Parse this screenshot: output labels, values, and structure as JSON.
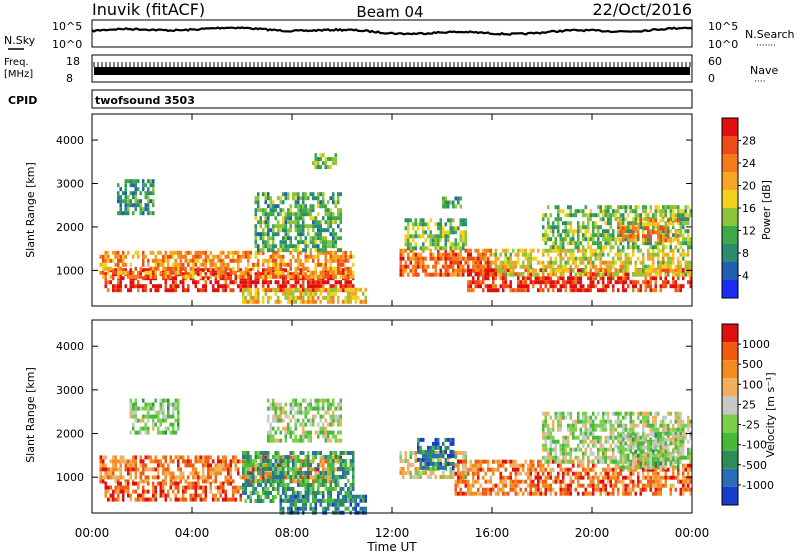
{
  "header": {
    "station": "Inuvik (fitACF)",
    "beam": "Beam 04",
    "date": "22/Oct/2016"
  },
  "nsky": {
    "left_label": "N.Sky",
    "ticks": [
      "10^5",
      "10^0"
    ],
    "right_label": "N.Search",
    "right_ticks": [
      "10^5",
      "10^0"
    ]
  },
  "freq": {
    "left_label_1": "Freq.",
    "left_label_2": "[MHz]",
    "ticks": [
      "18",
      "8"
    ],
    "right_label": "Nave",
    "right_ticks": [
      "60",
      "0"
    ]
  },
  "cpid": {
    "label": "CPID",
    "value": "twofsound 3503"
  },
  "x_axis": {
    "ticks": [
      "00:00",
      "04:00",
      "08:00",
      "12:00",
      "16:00",
      "20:00",
      "00:00"
    ],
    "label": "Time UT"
  },
  "chart_data": [
    {
      "type": "heatmap",
      "panel": "power",
      "ylabel": "Slant Range [km]",
      "y_ticks": [
        "1000",
        "2000",
        "3000",
        "4000"
      ],
      "ylim": [
        180,
        4600
      ],
      "xlim_hours": [
        0,
        24
      ],
      "colorbar": {
        "label": "Power [dB]",
        "ticks": [
          "4",
          "8",
          "12",
          "16",
          "20",
          "24",
          "28"
        ],
        "colors": [
          "#1a2cf0",
          "#1f5faf",
          "#2a8c6c",
          "#3fa84a",
          "#8cc43a",
          "#f0d21e",
          "#f5a623",
          "#f57c1a",
          "#f04a18",
          "#e01010"
        ]
      },
      "regions": [
        {
          "t0": 0.5,
          "t1": 10.5,
          "r0": 500,
          "r1": 1050,
          "level": 0.95
        },
        {
          "t0": 0.3,
          "t1": 10.5,
          "r0": 850,
          "r1": 1450,
          "level": 0.7
        },
        {
          "t0": 6.0,
          "t1": 11.0,
          "r0": 300,
          "r1": 600,
          "level": 0.6
        },
        {
          "t0": 1.0,
          "t1": 2.5,
          "r0": 2300,
          "r1": 3100,
          "level": 0.3
        },
        {
          "t0": 6.5,
          "t1": 10.0,
          "r0": 1500,
          "r1": 2800,
          "level": 0.35
        },
        {
          "t0": 8.8,
          "t1": 9.8,
          "r0": 3400,
          "r1": 3700,
          "level": 0.4
        },
        {
          "t0": 12.3,
          "t1": 16.2,
          "r0": 900,
          "r1": 1500,
          "level": 0.8
        },
        {
          "t0": 12.5,
          "t1": 15.0,
          "r0": 1500,
          "r1": 2200,
          "level": 0.4
        },
        {
          "t0": 14.0,
          "t1": 14.8,
          "r0": 2500,
          "r1": 2700,
          "level": 0.3
        },
        {
          "t0": 15.0,
          "t1": 24.0,
          "r0": 550,
          "r1": 1050,
          "level": 0.9
        },
        {
          "t0": 16.0,
          "t1": 24.0,
          "r0": 900,
          "r1": 1500,
          "level": 0.55
        },
        {
          "t0": 18.0,
          "t1": 24.0,
          "r0": 1500,
          "r1": 2500,
          "level": 0.4
        },
        {
          "t0": 21.0,
          "t1": 23.5,
          "r0": 1700,
          "r1": 2200,
          "level": 0.7
        }
      ]
    },
    {
      "type": "heatmap",
      "panel": "velocity",
      "ylabel": "Slant Range [km]",
      "y_ticks": [
        "1000",
        "2000",
        "3000",
        "4000"
      ],
      "ylim": [
        180,
        4600
      ],
      "xlim_hours": [
        0,
        24
      ],
      "colorbar": {
        "label": "Velocity [m s⁻¹]",
        "ticks": [
          "1000",
          "500",
          "100",
          "25",
          "-25",
          "-100",
          "-500",
          "-1000"
        ],
        "colors": [
          "#1a3ccc",
          "#2a6cb8",
          "#2e8c5a",
          "#46b83a",
          "#7ad04a",
          "#c8c8c8",
          "#f0b060",
          "#f58a1e",
          "#f05a10",
          "#e01010"
        ]
      },
      "regions": [
        {
          "t0": 0.3,
          "t1": 10.0,
          "r0": 900,
          "r1": 1500,
          "level": 0.78
        },
        {
          "t0": 0.5,
          "t1": 6.0,
          "r0": 500,
          "r1": 900,
          "level": 0.85
        },
        {
          "t0": 6.0,
          "t1": 10.5,
          "r0": 500,
          "r1": 1600,
          "level": 0.3
        },
        {
          "t0": 7.5,
          "t1": 11.0,
          "r0": 200,
          "r1": 600,
          "level": 0.2
        },
        {
          "t0": 1.5,
          "t1": 3.5,
          "r0": 2000,
          "r1": 2800,
          "level": 0.45
        },
        {
          "t0": 7.0,
          "t1": 10.0,
          "r0": 1800,
          "r1": 2800,
          "level": 0.48
        },
        {
          "t0": 12.3,
          "t1": 15.0,
          "r0": 1000,
          "r1": 1600,
          "level": 0.55
        },
        {
          "t0": 13.0,
          "t1": 14.5,
          "r0": 1200,
          "r1": 1900,
          "level": 0.15
        },
        {
          "t0": 14.5,
          "t1": 24.0,
          "r0": 600,
          "r1": 1400,
          "level": 0.8
        },
        {
          "t0": 18.0,
          "t1": 24.0,
          "r0": 1400,
          "r1": 2500,
          "level": 0.5
        },
        {
          "t0": 21.0,
          "t1": 23.5,
          "r0": 1200,
          "r1": 2000,
          "level": 0.45
        }
      ]
    }
  ]
}
